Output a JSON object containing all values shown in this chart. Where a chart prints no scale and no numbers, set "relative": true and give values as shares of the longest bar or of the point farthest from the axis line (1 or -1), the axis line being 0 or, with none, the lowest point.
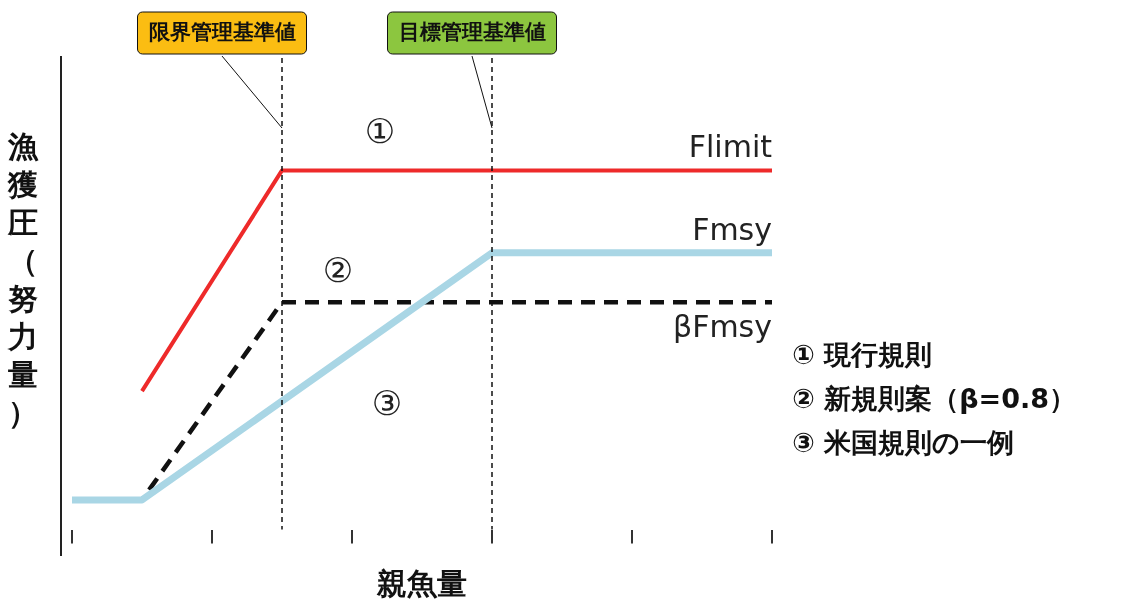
{
  "chart_data": {
    "type": "line",
    "relative": true,
    "xlabel": "親魚量",
    "ylabel": "漁獲圧（努力量）",
    "legend": false,
    "grid": false,
    "marker": "none",
    "categories": [
      null,
      null,
      null,
      null,
      null,
      null,
      null,
      null,
      null,
      null,
      null
    ],
    "series": [
      {
        "name": "Flimit",
        "color": "#ee2a2a",
        "values": [
          null,
          0.33,
          null,
          1,
          null,
          null,
          null,
          null,
          null,
          null,
          1
        ],
        "line_style": "solid"
      },
      {
        "name": "Fmsy",
        "color": "#a9d6e5",
        "values": [
          0,
          0,
          null,
          null,
          null,
          null,
          0.75,
          null,
          null,
          null,
          0.75
        ],
        "line_style": "solid"
      },
      {
        "name": "βFmsy",
        "color": "#111111",
        "values": [
          0,
          0,
          null,
          0.6,
          null,
          null,
          null,
          null,
          null,
          null,
          0.6
        ],
        "line_style": "dashed"
      }
    ],
    "annotations": [
      "①",
      "②",
      "③",
      "① 現行規則",
      "② 新規則案（β=0.8）",
      "③ 米国規則の一例",
      "限界管理基準値",
      "目標管理基準値"
    ]
  }
}
